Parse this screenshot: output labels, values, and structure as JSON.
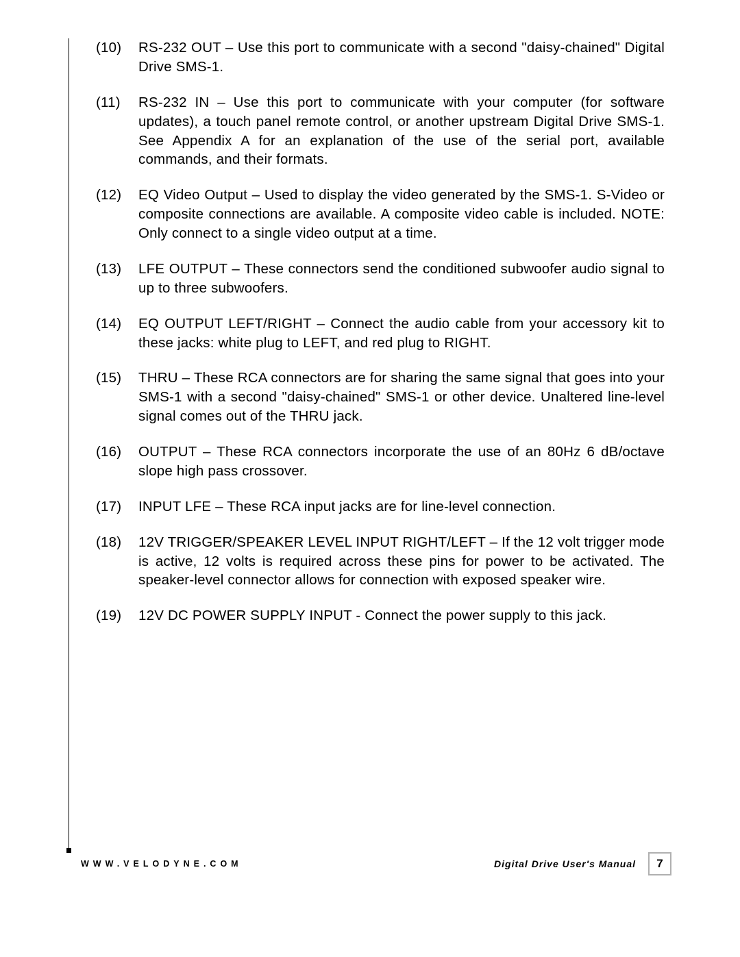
{
  "items": [
    {
      "num": "(10)",
      "text": "RS-232 OUT – Use this port to communicate with a second \"daisy-chained\" Digital Drive SMS-1.",
      "justify": true
    },
    {
      "num": "(11)",
      "text": "RS-232 IN – Use this port to communicate with your computer (for software updates), a touch panel remote control, or another upstream Digital Drive SMS-1. See Appendix A for an explanation of the use of the serial port, available commands, and their formats.",
      "justify": true
    },
    {
      "num": "(12)",
      "text": "EQ Video Output – Used to display the video generated by the SMS-1.  S-Video or composite connections are available.  A composite video cable is included.  NOTE: Only connect to a single video output at a time.",
      "justify": true
    },
    {
      "num": "(13)",
      "text": "LFE OUTPUT – These connectors send the conditioned subwoofer audio signal to up to three subwoofers.",
      "justify": true
    },
    {
      "num": "(14)",
      "text": "EQ OUTPUT LEFT/RIGHT – Connect the audio cable from your accessory kit to these jacks: white plug to LEFT, and red plug to RIGHT.",
      "justify": true
    },
    {
      "num": "(15)",
      "text": "THRU – These RCA connectors are for sharing the same signal that goes into your SMS-1 with a second \"daisy-chained\" SMS-1 or other device. Unaltered line-level signal comes out of the THRU jack.",
      "justify": true
    },
    {
      "num": "(16)",
      "text": "OUTPUT – These RCA connectors incorporate the use of an 80Hz 6 dB/octave slope high pass crossover.",
      "justify": true
    },
    {
      "num": "(17)",
      "text": "INPUT LFE – These RCA input jacks are for line-level connection.",
      "justify": false
    },
    {
      "num": "(18)",
      "text": "12V TRIGGER/SPEAKER LEVEL INPUT RIGHT/LEFT – If the 12 volt trigger mode is active, 12 volts is required across these pins for power to be activated.  The speaker-level connector allows for connection with exposed speaker wire.",
      "justify": true
    },
    {
      "num": "(19)",
      "text": "12V DC POWER SUPPLY INPUT - Connect the power supply to this jack.",
      "justify": false
    }
  ],
  "footer": {
    "url": "WWW.VELODYNE.COM",
    "title": "Digital Drive User's Manual",
    "page": "7"
  }
}
